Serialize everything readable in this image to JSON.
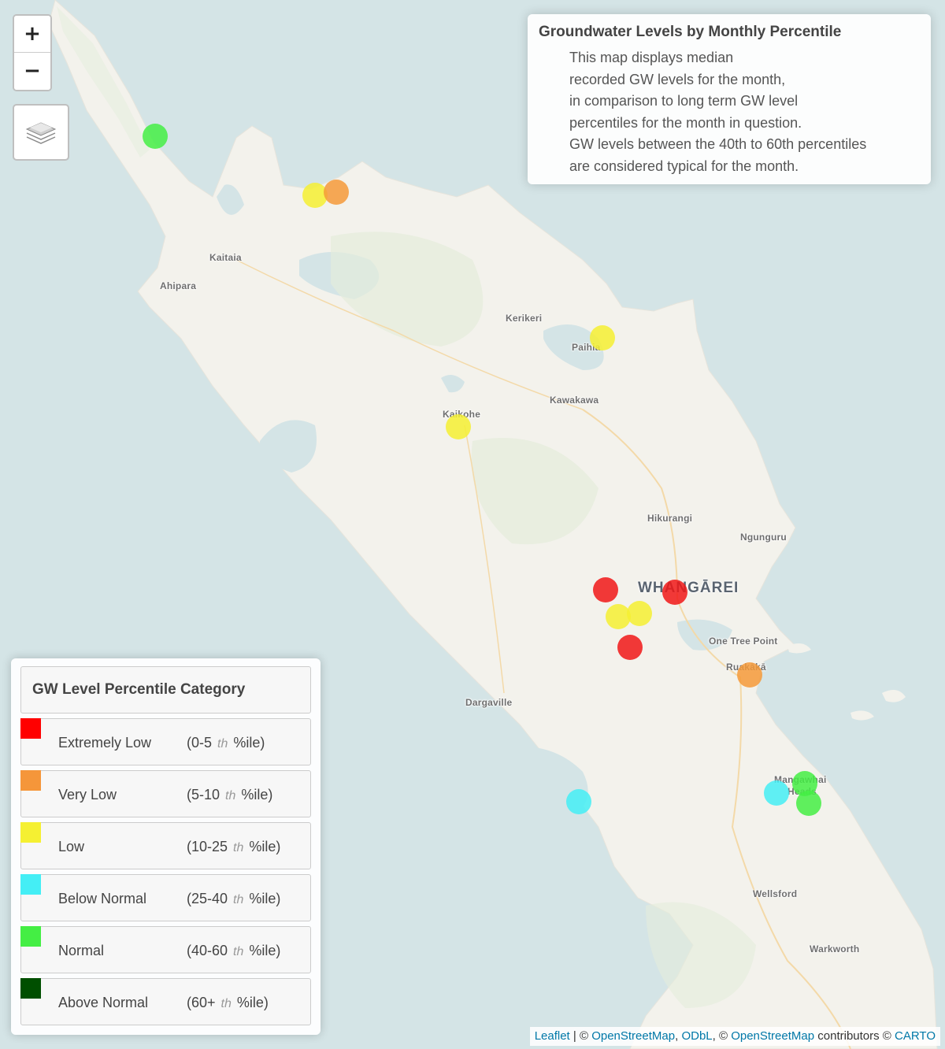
{
  "map": {
    "controls": {
      "zoom_in": "+",
      "zoom_out": "−",
      "layers_icon": "layers-stack-icon"
    },
    "places": [
      {
        "id": "kaitaia",
        "label": "Kaitaia"
      },
      {
        "id": "ahipara",
        "label": "Ahipara"
      },
      {
        "id": "kerikeri",
        "label": "Kerikeri"
      },
      {
        "id": "paihia",
        "label": "Paihia"
      },
      {
        "id": "kawakawa",
        "label": "Kawakawa"
      },
      {
        "id": "kaikohe",
        "label": "Kaikohe"
      },
      {
        "id": "hikurangi",
        "label": "Hikurangi"
      },
      {
        "id": "ngunguru",
        "label": "Ngunguru"
      },
      {
        "id": "whangarei",
        "label": "WHANGĀREI"
      },
      {
        "id": "one-tree-point",
        "label": "One Tree Point"
      },
      {
        "id": "ruakaka",
        "label": "Ruakākā"
      },
      {
        "id": "dargaville",
        "label": "Dargaville"
      },
      {
        "id": "mangawhai",
        "label": "Mangawhai"
      },
      {
        "id": "mangawhai-heads",
        "label": "Heads"
      },
      {
        "id": "wellsford",
        "label": "Wellsford"
      },
      {
        "id": "warkworth",
        "label": "Warkworth"
      }
    ],
    "sites": [
      {
        "category": "normal",
        "color": "#44ee44"
      },
      {
        "category": "low",
        "color": "#f5f032"
      },
      {
        "category": "very_low",
        "color": "#f59a3a"
      },
      {
        "category": "low",
        "color": "#f5f032"
      },
      {
        "category": "low",
        "color": "#f5f032"
      },
      {
        "category": "extremely_low",
        "color": "#f01818"
      },
      {
        "category": "extremely_low",
        "color": "#f01818"
      },
      {
        "category": "low",
        "color": "#f5f032"
      },
      {
        "category": "low",
        "color": "#f5f032"
      },
      {
        "category": "extremely_low",
        "color": "#f01818"
      },
      {
        "category": "very_low",
        "color": "#f59a3a"
      },
      {
        "category": "below_normal",
        "color": "#44eef5"
      },
      {
        "category": "below_normal",
        "color": "#44eef5"
      },
      {
        "category": "normal",
        "color": "#44ee44"
      },
      {
        "category": "normal",
        "color": "#44ee44"
      }
    ]
  },
  "info": {
    "title": "Groundwater Levels by Monthly Percentile",
    "lines": [
      "This map displays median",
      "recorded GW levels for the month,",
      "in comparison to long term GW level",
      "percentiles for the month in question.",
      "GW levels between the 40th to 60th percentiles",
      "are considered typical for the month."
    ]
  },
  "legend": {
    "title": "GW Level Percentile Category",
    "th": "th",
    "items": [
      {
        "label": "Extremely Low",
        "range_open": "(0-5",
        "range_close": "%ile)",
        "color": "#ff0000"
      },
      {
        "label": "Very Low",
        "range_open": "(5-10",
        "range_close": "%ile)",
        "color": "#f5963a"
      },
      {
        "label": "Low",
        "range_open": "(10-25",
        "range_close": "%ile)",
        "color": "#f5f032"
      },
      {
        "label": "Below Normal",
        "range_open": "(25-40",
        "range_close": "%ile)",
        "color": "#44eef5"
      },
      {
        "label": "Normal",
        "range_open": "(40-60",
        "range_close": "%ile)",
        "color": "#44ee44"
      },
      {
        "label": "Above Normal",
        "range_open": "(60+",
        "range_close": "%ile)",
        "color": "#004f00"
      }
    ]
  },
  "attribution": {
    "leaflet": "Leaflet",
    "sep1": " | © ",
    "osm": "OpenStreetMap",
    "sep2": ", ",
    "odbl": "ODbL",
    "sep3": ", © ",
    "osm2": "OpenStreetMap",
    "contributors": " contributors © ",
    "carto": "CARTO"
  }
}
